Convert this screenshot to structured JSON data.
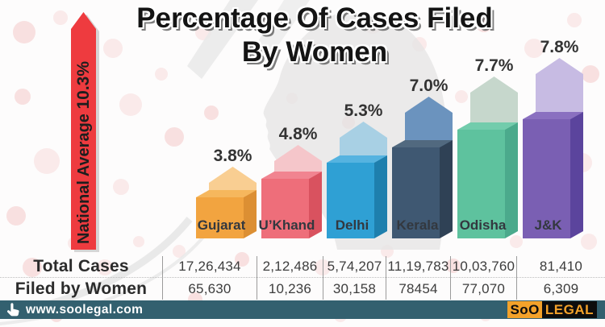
{
  "title": {
    "line1": "Percentage Of Cases Filed",
    "line2": "By Women"
  },
  "national_average": {
    "label": "National Average",
    "value": "10.3%"
  },
  "chart_data": {
    "type": "bar",
    "title": "Percentage Of Cases Filed By Women",
    "categories": [
      "Gujarat",
      "U’Khand",
      "Delhi",
      "Kerala",
      "Odisha",
      "J&K"
    ],
    "values": [
      3.8,
      4.8,
      5.3,
      7.0,
      7.7,
      7.8
    ],
    "value_labels": [
      "3.8%",
      "4.8%",
      "5.3%",
      "7.0%",
      "7.7%",
      "7.8%"
    ],
    "national_average_percent": 10.3,
    "legend": "none",
    "axes": "none",
    "bar_colors": [
      {
        "front": "#F2A440",
        "top": "#F6B75D",
        "side": "#DC8F33",
        "cap": "#F9CE92"
      },
      {
        "front": "#EE6E7A",
        "top": "#F18490",
        "side": "#D9525F",
        "cap": "#F5C6CA"
      },
      {
        "front": "#2FA0D4",
        "top": "#55B3E0",
        "side": "#1E7FAD",
        "cap": "#A8D0E4"
      },
      {
        "front": "#3F5872",
        "top": "#51697F",
        "side": "#2F4155",
        "cap": "#6B93BE"
      },
      {
        "front": "#5EC29E",
        "top": "#72CCAC",
        "side": "#4BAA8C",
        "cap": "#C6D7CC"
      },
      {
        "front": "#7A5FB3",
        "top": "#8A70C0",
        "side": "#5B449D",
        "cap": "#C7BBE3"
      }
    ],
    "table": {
      "rows": [
        {
          "label": "Total Cases",
          "values": [
            "17,26,434",
            "2,12,486",
            "5,74,207",
            "11,19,783",
            "10,03,760",
            "81,410"
          ]
        },
        {
          "label": "Filed by Women",
          "values": [
            "65,630",
            "10,236",
            "30,158",
            "78454",
            "77,070",
            "6,309"
          ]
        }
      ]
    }
  },
  "footer": {
    "url": "www.soolegal.com",
    "brand": {
      "part1": "SoO",
      "part2": "LEGAL"
    }
  },
  "colors": {
    "accent_red": "#EE3B3F",
    "footer_teal": "#33606F",
    "brand_orange": "#F3A22A",
    "dot_pink": "#F7DADA",
    "label_dark": "#33383F",
    "value_text": "#333333"
  }
}
